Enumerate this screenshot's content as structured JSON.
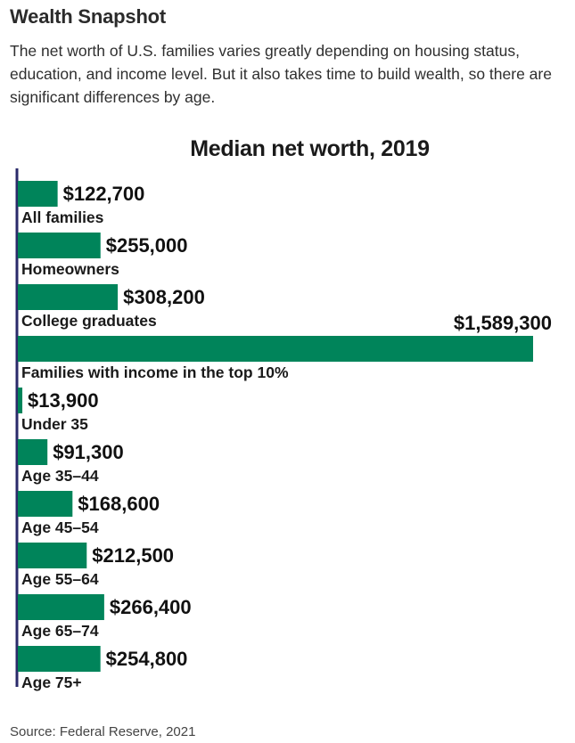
{
  "header": {
    "title": "Wealth Snapshot",
    "dek": "The net worth of U.S. families varies greatly depending on housing status, education, and income level. But it also takes time to build wealth, so there are significant differences by age."
  },
  "footer": {
    "source": "Source: Federal Reserve, 2021"
  },
  "chart_data": {
    "type": "bar",
    "orientation": "horizontal",
    "title": "Median net worth, 2019",
    "categories": [
      "All families",
      "Homeowners",
      "College graduates",
      "Families with income in the top 10%",
      "Under 35",
      "Age 35–44",
      "Age 45–54",
      "Age 55–64",
      "Age 65–74",
      "Age 75+"
    ],
    "values": [
      122700,
      255000,
      308200,
      1589300,
      13900,
      91300,
      168600,
      212500,
      266400,
      254800
    ],
    "value_labels": [
      "$122,700",
      "$255,000",
      "$308,200",
      "$1,589,300",
      "$13,900",
      "$91,300",
      "$168,600",
      "$212,500",
      "$266,400",
      "$254,800"
    ],
    "bar_color": "#00845a",
    "axis_color": "#2a2a6a",
    "grid": false,
    "legend": "none"
  }
}
